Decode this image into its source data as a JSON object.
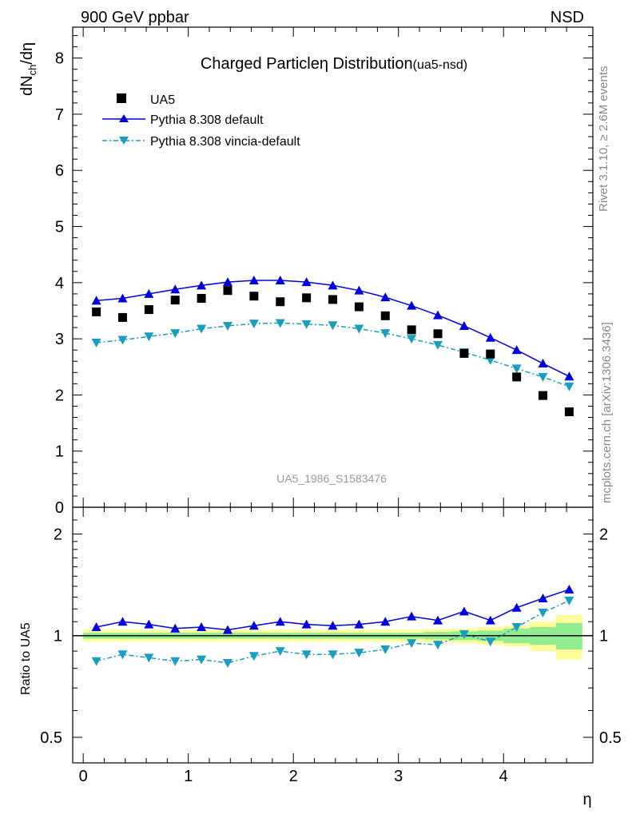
{
  "header": {
    "left": "900 GeV ppbar",
    "right": "NSD"
  },
  "side": {
    "rivet": "Rivet 3.1.10, ≥ 2.6M events",
    "mcplots": "mcplots.cern.ch [arXiv:1306.3436]"
  },
  "main": {
    "title_main": "Charged Particle",
    "title_eta": "η",
    "title_dist": " Distribution",
    "title_tag": "(ua5-nsd)",
    "ylabel_main": "dN",
    "ylabel_sub": "ch",
    "ylabel_rest": "/dη",
    "watermark": "UA5_1986_S1583476",
    "yticks": [
      "0",
      "1",
      "2",
      "3",
      "4",
      "5",
      "6",
      "7",
      "8"
    ]
  },
  "ratio": {
    "ylabel": "Ratio to UA5",
    "yticks_left": [
      "0.5",
      "1",
      "2"
    ],
    "yticks_right": [
      "0.5",
      "1",
      "2"
    ]
  },
  "xaxis": {
    "label": "η",
    "ticks": [
      "0",
      "1",
      "2",
      "3",
      "4"
    ]
  },
  "legend": [
    {
      "label": "UA5",
      "marker": "square",
      "color": "#000000"
    },
    {
      "label": "Pythia 8.308 default",
      "marker": "triangle-up",
      "color": "#0000dd"
    },
    {
      "label": "Pythia 8.308 vincia-default",
      "marker": "triangle-down",
      "color": "#1a9ebf"
    }
  ],
  "chart_data": {
    "type": "scatter",
    "x": [
      0.125,
      0.375,
      0.625,
      0.875,
      1.125,
      1.375,
      1.625,
      1.875,
      2.125,
      2.375,
      2.625,
      2.875,
      3.125,
      3.375,
      3.625,
      3.875,
      4.125,
      4.375,
      4.625
    ],
    "xlim": [
      -0.1,
      4.85
    ],
    "ylim": [
      0,
      8.55
    ],
    "ratio_ylim_log": [
      0.42,
      2.4
    ],
    "series": [
      {
        "name": "UA5",
        "values": [
          3.48,
          3.38,
          3.52,
          3.69,
          3.72,
          3.86,
          3.76,
          3.66,
          3.73,
          3.7,
          3.57,
          3.41,
          3.16,
          3.09,
          2.74,
          2.73,
          2.32,
          1.99,
          1.7
        ]
      },
      {
        "name": "Pythia 8.308 default",
        "values": [
          3.68,
          3.72,
          3.8,
          3.88,
          3.95,
          4.01,
          4.04,
          4.04,
          4.01,
          3.95,
          3.86,
          3.74,
          3.59,
          3.42,
          3.23,
          3.02,
          2.8,
          2.56,
          2.33
        ]
      },
      {
        "name": "Pythia 8.308 vincia-default",
        "values": [
          2.93,
          2.98,
          3.04,
          3.1,
          3.18,
          3.23,
          3.27,
          3.28,
          3.26,
          3.24,
          3.18,
          3.1,
          3.0,
          2.89,
          2.76,
          2.62,
          2.47,
          2.32,
          2.15
        ]
      }
    ],
    "ratio_series": [
      {
        "name": "Pythia 8.308 default",
        "values": [
          1.06,
          1.1,
          1.08,
          1.05,
          1.06,
          1.04,
          1.07,
          1.1,
          1.08,
          1.07,
          1.08,
          1.1,
          1.14,
          1.11,
          1.18,
          1.11,
          1.21,
          1.29,
          1.37
        ]
      },
      {
        "name": "Pythia 8.308 vincia-default",
        "values": [
          0.84,
          0.88,
          0.86,
          0.84,
          0.85,
          0.83,
          0.87,
          0.9,
          0.88,
          0.88,
          0.89,
          0.91,
          0.95,
          0.94,
          1.01,
          0.96,
          1.06,
          1.17,
          1.27
        ]
      }
    ],
    "ratio_band_inner": [
      0.02,
      0.02,
      0.02,
      0.02,
      0.02,
      0.02,
      0.02,
      0.02,
      0.02,
      0.02,
      0.02,
      0.02,
      0.02,
      0.025,
      0.03,
      0.035,
      0.05,
      0.06,
      0.09
    ],
    "ratio_band_outer": [
      0.04,
      0.04,
      0.04,
      0.04,
      0.04,
      0.04,
      0.04,
      0.04,
      0.04,
      0.04,
      0.04,
      0.04,
      0.04,
      0.045,
      0.05,
      0.06,
      0.07,
      0.1,
      0.15
    ],
    "colors": {
      "ua5": "#000000",
      "default": "#0000dd",
      "vincia": "#1a9ebf",
      "band_inner": "#90ee90",
      "band_outer": "#ffff99"
    }
  }
}
